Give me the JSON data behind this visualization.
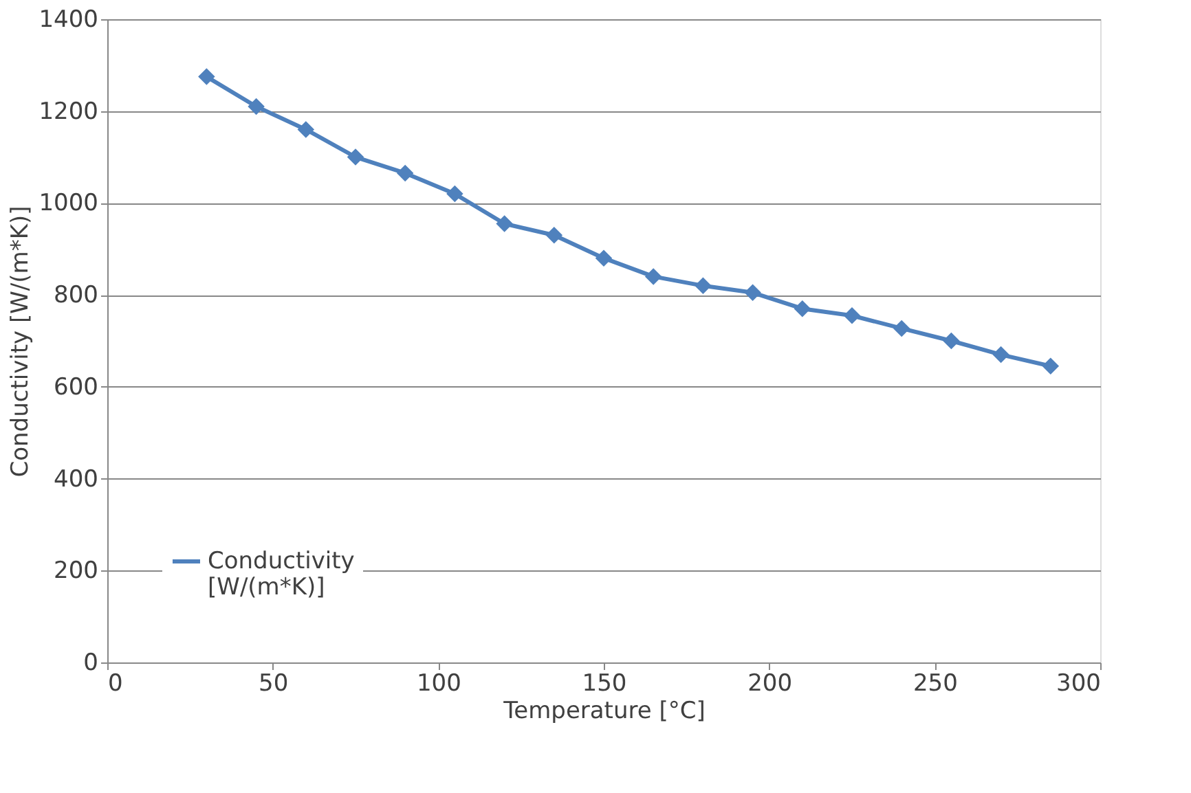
{
  "chart_data": {
    "type": "line",
    "xlabel": "Temperature [°C]",
    "ylabel": "Conductivity  [W/(m*K)]",
    "x": [
      30,
      45,
      60,
      75,
      90,
      105,
      120,
      135,
      150,
      165,
      180,
      195,
      210,
      225,
      240,
      255,
      270,
      285
    ],
    "series": [
      {
        "name": "Conductivity [W/(m*K)]",
        "color": "#4f81bd",
        "values": [
          1275,
          1210,
          1160,
          1100,
          1065,
          1020,
          955,
          930,
          880,
          840,
          820,
          805,
          770,
          755,
          727,
          700,
          670,
          645
        ]
      }
    ],
    "xlim": [
      0,
      300
    ],
    "xticks": [
      0,
      50,
      100,
      150,
      200,
      250,
      300
    ],
    "ylim": [
      0,
      1400
    ],
    "yticks": [
      0,
      200,
      400,
      600,
      800,
      1000,
      1200,
      1400
    ],
    "grid": "y",
    "legend": "bottom left",
    "marker": "diamond",
    "line_style": "solid"
  }
}
